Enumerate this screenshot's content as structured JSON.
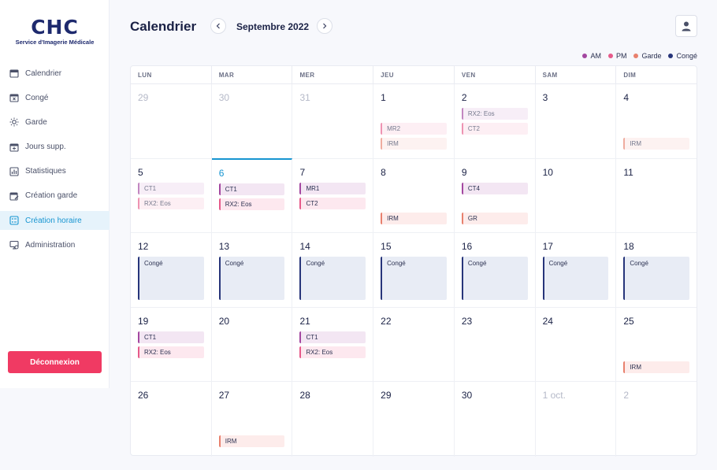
{
  "sidebar": {
    "logo_mark": "CHC",
    "logo_subtitle": "Service d'Imagerie Médicale",
    "items": [
      {
        "label": "Calendrier",
        "icon": "calendar-icon",
        "active": false
      },
      {
        "label": "Congé",
        "icon": "calendar-x-icon",
        "active": false
      },
      {
        "label": "Garde",
        "icon": "sun-icon",
        "active": false
      },
      {
        "label": "Jours supp.",
        "icon": "calendar-plus-icon",
        "active": false
      },
      {
        "label": "Statistiques",
        "icon": "chart-icon",
        "active": false
      },
      {
        "label": "Création garde",
        "icon": "calendar-edit-icon",
        "active": false
      },
      {
        "label": "Création horaire",
        "icon": "grid-list-icon",
        "active": true
      },
      {
        "label": "Administration",
        "icon": "admin-icon",
        "active": false
      }
    ],
    "logout_label": "Déconnexion"
  },
  "header": {
    "title": "Calendrier",
    "month": "Septembre 2022"
  },
  "legend": [
    {
      "label": "AM",
      "color": "#a347a0"
    },
    {
      "label": "PM",
      "color": "#e65a8a"
    },
    {
      "label": "Garde",
      "color": "#e8806d"
    },
    {
      "label": "Congé",
      "color": "#27357a"
    }
  ],
  "weekdays": [
    "LUN",
    "MAR",
    "MER",
    "JEU",
    "VEN",
    "SAM",
    "DIM"
  ],
  "weeks": [
    [
      {
        "num": "29",
        "muted": true,
        "events": []
      },
      {
        "num": "30",
        "muted": true,
        "events": []
      },
      {
        "num": "31",
        "muted": true,
        "events": []
      },
      {
        "num": "1",
        "events": [
          {
            "type": "spacer"
          },
          {
            "type": "pm",
            "label": "MR2",
            "muted": true
          },
          {
            "type": "garde",
            "label": "IRM",
            "muted": true
          }
        ]
      },
      {
        "num": "2",
        "events": [
          {
            "type": "am",
            "label": "RX2: Eos",
            "muted": true
          },
          {
            "type": "pm",
            "label": "CT2",
            "muted": true
          }
        ]
      },
      {
        "num": "3",
        "events": []
      },
      {
        "num": "4",
        "events": [
          {
            "type": "spacer"
          },
          {
            "type": "spacer"
          },
          {
            "type": "garde",
            "label": "IRM",
            "muted": true
          }
        ]
      }
    ],
    [
      {
        "num": "5",
        "events": [
          {
            "type": "am",
            "label": "CT1",
            "muted": true
          },
          {
            "type": "pm",
            "label": "RX2: Eos",
            "muted": true
          }
        ]
      },
      {
        "num": "6",
        "today": true,
        "events": [
          {
            "type": "am",
            "label": "CT1"
          },
          {
            "type": "pm",
            "label": "RX2: Eos"
          }
        ]
      },
      {
        "num": "7",
        "events": [
          {
            "type": "am",
            "label": "MR1"
          },
          {
            "type": "pm",
            "label": "CT2"
          }
        ]
      },
      {
        "num": "8",
        "events": [
          {
            "type": "spacer"
          },
          {
            "type": "spacer"
          },
          {
            "type": "garde",
            "label": "IRM"
          }
        ]
      },
      {
        "num": "9",
        "events": [
          {
            "type": "am",
            "label": "CT4"
          },
          {
            "type": "spacer"
          },
          {
            "type": "garde",
            "label": "GR"
          }
        ]
      },
      {
        "num": "10",
        "events": []
      },
      {
        "num": "11",
        "events": []
      }
    ],
    [
      {
        "num": "12",
        "events": [
          {
            "type": "conge",
            "label": "Congé"
          }
        ]
      },
      {
        "num": "13",
        "events": [
          {
            "type": "conge",
            "label": "Congé"
          }
        ]
      },
      {
        "num": "14",
        "events": [
          {
            "type": "conge",
            "label": "Congé"
          }
        ]
      },
      {
        "num": "15",
        "events": [
          {
            "type": "conge",
            "label": "Congé"
          }
        ]
      },
      {
        "num": "16",
        "events": [
          {
            "type": "conge",
            "label": "Congé"
          }
        ]
      },
      {
        "num": "17",
        "events": [
          {
            "type": "conge",
            "label": "Congé"
          }
        ]
      },
      {
        "num": "18",
        "events": [
          {
            "type": "conge",
            "label": "Congé"
          }
        ]
      }
    ],
    [
      {
        "num": "19",
        "events": [
          {
            "type": "am",
            "label": "CT1"
          },
          {
            "type": "pm",
            "label": "RX2: Eos"
          }
        ]
      },
      {
        "num": "20",
        "events": []
      },
      {
        "num": "21",
        "events": [
          {
            "type": "am",
            "label": "CT1"
          },
          {
            "type": "pm",
            "label": "RX2: Eos"
          }
        ]
      },
      {
        "num": "22",
        "events": []
      },
      {
        "num": "23",
        "events": []
      },
      {
        "num": "24",
        "events": []
      },
      {
        "num": "25",
        "events": [
          {
            "type": "spacer"
          },
          {
            "type": "spacer"
          },
          {
            "type": "garde",
            "label": "IRM"
          }
        ]
      }
    ],
    [
      {
        "num": "26",
        "events": []
      },
      {
        "num": "27",
        "events": [
          {
            "type": "spacer"
          },
          {
            "type": "spacer"
          },
          {
            "type": "garde",
            "label": "IRM"
          }
        ]
      },
      {
        "num": "28",
        "events": []
      },
      {
        "num": "29",
        "events": []
      },
      {
        "num": "30",
        "events": []
      },
      {
        "num": "1 oct.",
        "muted": true,
        "events": []
      },
      {
        "num": "2",
        "muted": true,
        "events": []
      }
    ]
  ]
}
